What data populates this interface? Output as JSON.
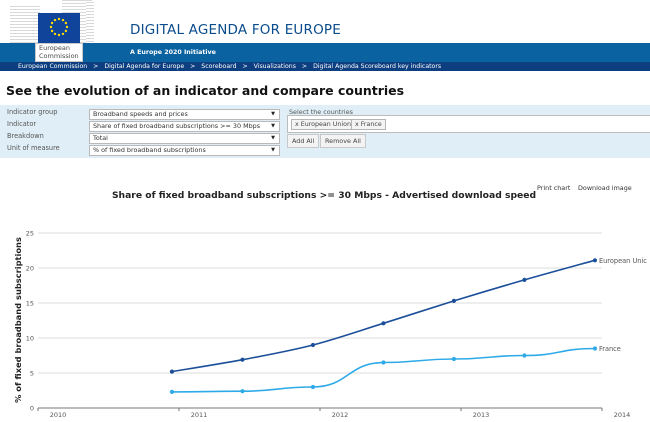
{
  "header": {
    "logo_text_line1": "European",
    "logo_text_line2": "Commission",
    "site_title": "DIGITAL AGENDA FOR EUROPE",
    "tagline": "A Europe 2020 Initiative",
    "breadcrumb": [
      "European Commission",
      "Digital Agenda for Europe",
      "Scoreboard",
      "Visualizations",
      "Digital Agenda Scoreboard key indicators"
    ],
    "breadcrumb_separator": ">"
  },
  "page": {
    "title": "See the evolution of an indicator and compare countries"
  },
  "form": {
    "fields": [
      {
        "label": "Indicator group",
        "value": "Broadband speeds and prices"
      },
      {
        "label": "Indicator",
        "value": "Share of fixed broadband subscriptions >= 30 Mbps"
      },
      {
        "label": "Breakdown",
        "value": "Total"
      },
      {
        "label": "Unit of measure",
        "value": "% of fixed broadband subscriptions"
      }
    ],
    "dropdown_arrow": "▼",
    "countries_label": "Select the countries",
    "selected_countries": [
      {
        "remove": "x",
        "name": "European Union"
      },
      {
        "remove": "x",
        "name": "France"
      }
    ],
    "add_all_label": "Add All",
    "remove_all_label": "Remove All"
  },
  "chart_actions": {
    "print_label": "Print chart",
    "download_label": "Download image"
  },
  "chart_data": {
    "type": "line",
    "title": "Share of fixed broadband subscriptions >= 30 Mbps - Advertised download speed",
    "xlabel": "",
    "ylabel": "% of fixed broadband subscriptions",
    "xlim": [
      2010,
      2014
    ],
    "ylim": [
      0,
      25
    ],
    "x_ticks": [
      2010,
      2011,
      2012,
      2013,
      2014
    ],
    "x_tick_labels": [
      "2010",
      "2011",
      "2012",
      "2013",
      "2014"
    ],
    "y_ticks": [
      0,
      5,
      10,
      15,
      20,
      25
    ],
    "y_tick_labels": [
      "0",
      "5",
      "10",
      "15",
      "20",
      "25"
    ],
    "grid": true,
    "legend": "inline labels at line ends (right)",
    "x": [
      2010.95,
      2011.45,
      2011.95,
      2012.45,
      2012.95,
      2013.45,
      2013.95
    ],
    "series": [
      {
        "name": "European Union",
        "label": "European Unic",
        "color": "#1c4f9a",
        "smooth": false,
        "values": [
          5.2,
          6.9,
          9.0,
          12.1,
          15.3,
          18.3,
          21.1
        ]
      },
      {
        "name": "France",
        "label": "France",
        "color": "#2eaae8",
        "smooth": true,
        "values": [
          2.3,
          2.4,
          3.0,
          6.5,
          7.0,
          7.5,
          8.5
        ]
      }
    ]
  }
}
